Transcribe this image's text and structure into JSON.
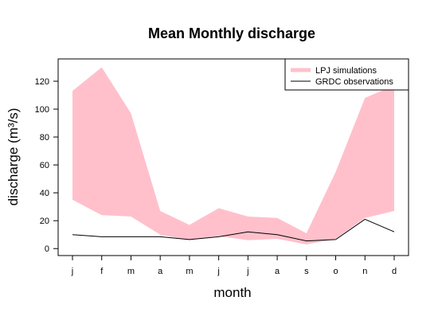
{
  "chart_data": {
    "type": "area",
    "title": "Mean Monthly discharge",
    "xlabel": "month",
    "ylabel": "discharge (m³/s)",
    "categories": [
      "j",
      "f",
      "m",
      "a",
      "m",
      "j",
      "j",
      "a",
      "s",
      "o",
      "n",
      "d"
    ],
    "ylim": [
      -5,
      136
    ],
    "yticks": [
      0,
      20,
      40,
      60,
      80,
      100,
      120
    ],
    "series": [
      {
        "name": "LPJ simulations",
        "kind": "band",
        "color": "#ffc0cb",
        "upper": [
          113,
          130,
          97,
          27,
          17,
          29,
          23,
          22,
          11,
          55,
          108,
          117
        ],
        "lower": [
          35,
          24,
          23,
          10,
          6,
          9,
          6,
          7,
          3,
          7,
          22,
          27
        ]
      },
      {
        "name": "GRDC observations",
        "kind": "line",
        "color": "#000000",
        "values": [
          10,
          8.5,
          8.5,
          8.5,
          6.5,
          8.5,
          12,
          10,
          5.5,
          6.5,
          21,
          12
        ]
      }
    ],
    "legend_position": "top-right",
    "grid": false
  }
}
